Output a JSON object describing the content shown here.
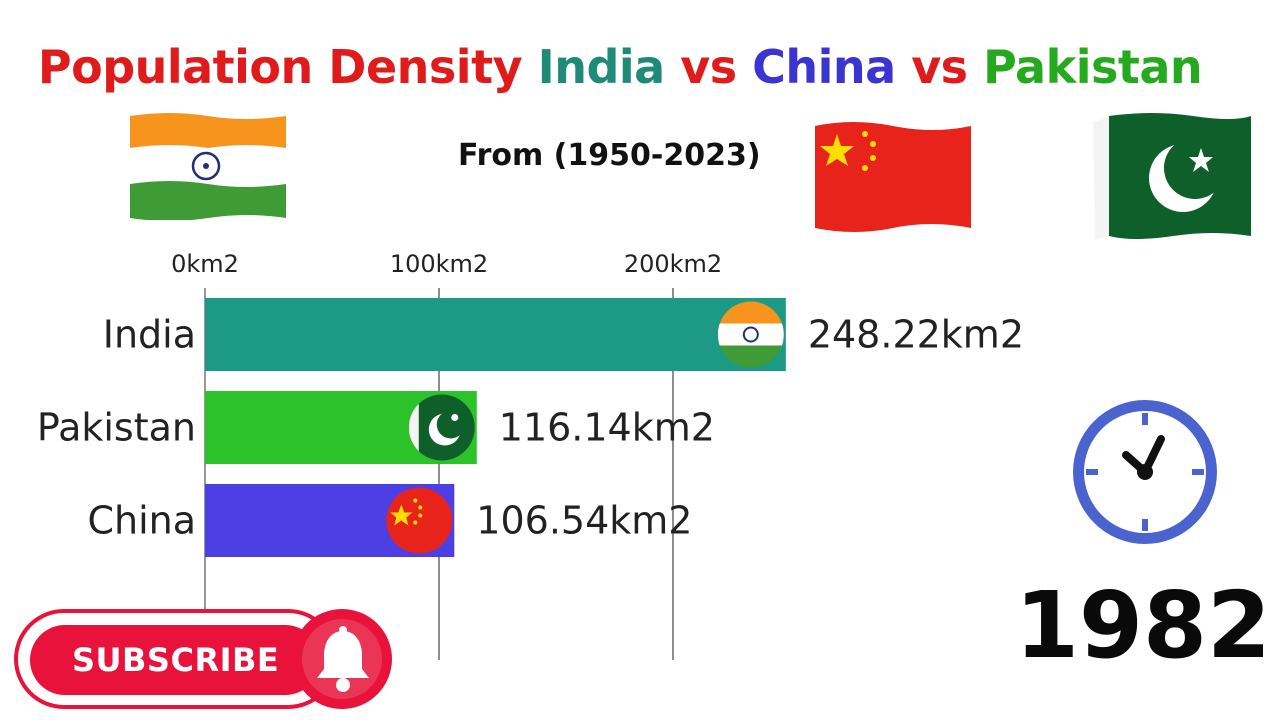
{
  "title": {
    "part1": "Population Density",
    "part2": "India",
    "part3": "vs",
    "part4": "China",
    "part5": "vs",
    "part6": "Pakistan",
    "colors": [
      "#e01b1b",
      "#1f8a78",
      "#e01b1b",
      "#3a34d0",
      "#e01b1b",
      "#25a91e"
    ]
  },
  "subtitle": "From (1950-2023)",
  "year": "1982",
  "subscribe_label": "SUBSCRIBE",
  "colors": {
    "india": "#1c9a86",
    "pakistan": "#2cc22a",
    "china": "#4c3fe4",
    "subscribe_red": "#e8123a",
    "clock_blue": "#4a63cf"
  },
  "icons": [
    "india-flag-icon",
    "china-flag-icon",
    "pakistan-flag-icon",
    "clock-icon",
    "bell-icon"
  ],
  "chart_data": {
    "type": "bar",
    "orientation": "horizontal",
    "categories": [
      "India",
      "Pakistan",
      "China"
    ],
    "values": [
      248.22,
      116.14,
      106.54
    ],
    "value_labels": [
      "248.22km2",
      "116.14km2",
      "106.54km2"
    ],
    "tick_labels": [
      "0km2",
      "100km2",
      "200km2"
    ],
    "ticks": [
      0,
      100,
      200
    ],
    "xlim": [
      0,
      290
    ],
    "grid": true,
    "xaxis_position": "top",
    "title": "Population Density India vs China vs Pakistan",
    "xlabel": "",
    "ylabel": ""
  }
}
